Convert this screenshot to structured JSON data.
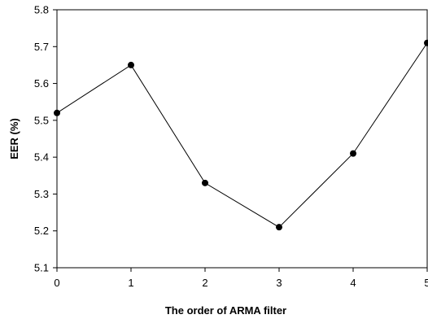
{
  "chart_data": {
    "type": "line",
    "title": "",
    "xlabel": "The order of ARMA filter",
    "ylabel": "EER (%)",
    "x": [
      0,
      1,
      2,
      3,
      4,
      5
    ],
    "series": [
      {
        "values": [
          5.52,
          5.65,
          5.33,
          5.21,
          5.41,
          5.71
        ]
      }
    ],
    "xlim": [
      0,
      5
    ],
    "ylim": [
      5.1,
      5.8
    ],
    "xticks": [
      "0",
      "1",
      "2",
      "3",
      "4",
      "5"
    ],
    "yticks": [
      "5.1",
      "5.2",
      "5.3",
      "5.4",
      "5.5",
      "5.6",
      "5.7",
      "5.8"
    ],
    "grid": false,
    "legend": "none",
    "line_color": "#000000",
    "marker_color": "#000000"
  }
}
